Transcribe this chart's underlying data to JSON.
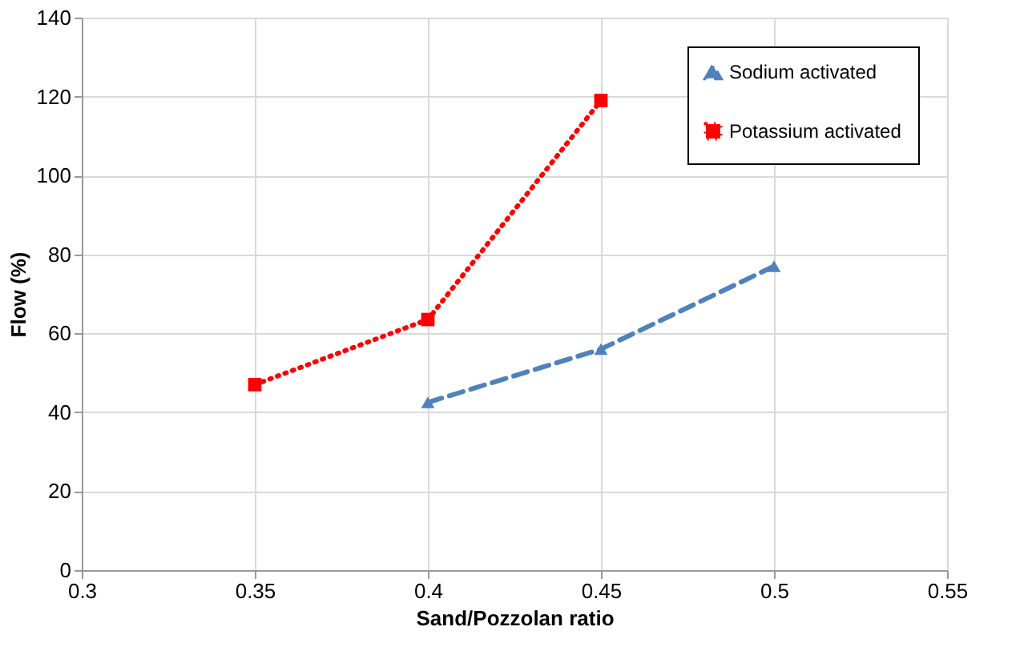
{
  "chart_data": {
    "type": "line",
    "xlabel": "Sand/Pozzolan ratio",
    "ylabel": "Flow (%)",
    "xlim": [
      0.3,
      0.55
    ],
    "xticks": [
      0.3,
      0.35,
      0.4,
      0.45,
      0.5,
      0.55
    ],
    "ylim": [
      0,
      140
    ],
    "yticks": [
      0,
      20,
      40,
      60,
      80,
      100,
      120,
      140
    ],
    "grid": true,
    "legend": "top right",
    "series": [
      {
        "name": "Sodium activated",
        "color": "#4f81bd",
        "x": [
          0.4,
          0.45,
          0.5
        ],
        "values": [
          42.5,
          56,
          77
        ],
        "marker": "triangle",
        "line_style": "dashed"
      },
      {
        "name": "Potassium activated",
        "color": "#ff0000",
        "x": [
          0.35,
          0.4,
          0.45
        ],
        "values": [
          47,
          63.5,
          119
        ],
        "marker": "square",
        "line_style": "dotted"
      }
    ]
  }
}
